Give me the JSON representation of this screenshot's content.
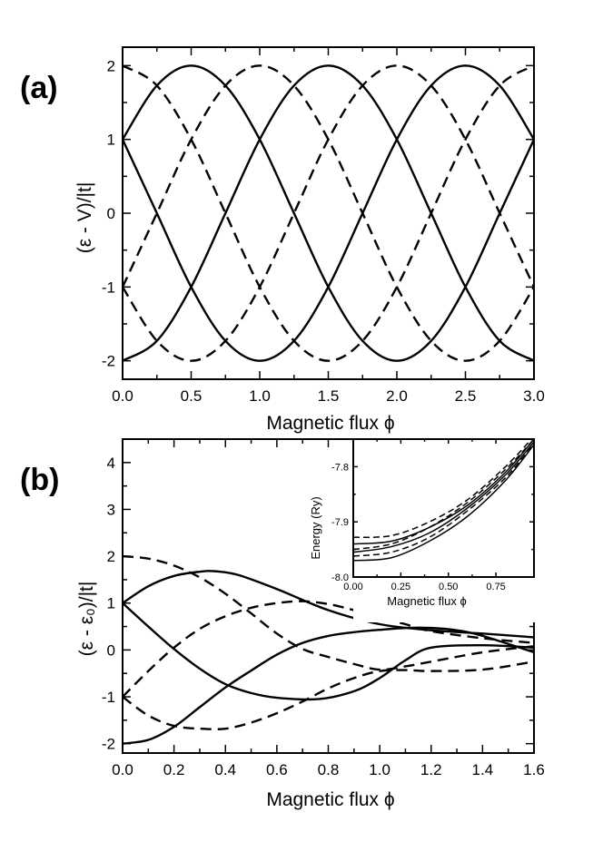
{
  "chart_data": [
    {
      "id": "a",
      "type": "line",
      "panel_label": "(a)",
      "title": "",
      "xlabel": "Magnetic flux ϕ",
      "ylabel": "(ε - V)/|t|",
      "xlim": [
        0,
        3
      ],
      "ylim": [
        -2.25,
        2.25
      ],
      "xticks": [
        0.0,
        0.5,
        1.0,
        1.5,
        2.0,
        2.5,
        3.0
      ],
      "xtick_labels": [
        "0.0",
        "0.5",
        "1.0",
        "1.5",
        "2.0",
        "2.5",
        "3.0"
      ],
      "yticks": [
        -2,
        -1,
        0,
        1,
        2
      ],
      "ytick_labels": [
        "-2",
        "-1",
        "0",
        "1",
        "2"
      ],
      "grid": false,
      "series": [
        {
          "style": "solid",
          "x": [
            0,
            0.25,
            0.5,
            0.75,
            1.0,
            1.25,
            1.5,
            1.75,
            2.0,
            2.25,
            2.5,
            2.75,
            3.0
          ],
          "y": [
            1.0,
            1.73,
            2.0,
            1.73,
            1.0,
            0.0,
            -1.0,
            -1.73,
            -2.0,
            -1.73,
            -1.0,
            0.0,
            1.0
          ]
        },
        {
          "style": "solid",
          "x": [
            0,
            0.25,
            0.5,
            0.75,
            1.0,
            1.25,
            1.5,
            1.75,
            2.0,
            2.25,
            2.5,
            2.75,
            3.0
          ],
          "y": [
            1.0,
            0.0,
            -1.0,
            -1.73,
            -2.0,
            -1.73,
            -1.0,
            0.0,
            1.0,
            1.73,
            2.0,
            1.73,
            1.0
          ]
        },
        {
          "style": "solid",
          "x": [
            0,
            0.25,
            0.5,
            0.75,
            1.0,
            1.25,
            1.5,
            1.75,
            2.0,
            2.25,
            2.5,
            2.75,
            3.0
          ],
          "y": [
            -2.0,
            -1.73,
            -1.0,
            0.0,
            1.0,
            1.73,
            2.0,
            1.73,
            1.0,
            0.0,
            -1.0,
            -1.73,
            -2.0
          ]
        },
        {
          "style": "dashed",
          "x": [
            0,
            0.25,
            0.5,
            0.75,
            1.0,
            1.25,
            1.5,
            1.75,
            2.0,
            2.25,
            2.5,
            2.75,
            3.0
          ],
          "y": [
            2.0,
            1.73,
            1.0,
            0.0,
            -1.0,
            -1.73,
            -2.0,
            -1.73,
            -1.0,
            0.0,
            1.0,
            1.73,
            2.0
          ]
        },
        {
          "style": "dashed",
          "x": [
            0,
            0.25,
            0.5,
            0.75,
            1.0,
            1.25,
            1.5,
            1.75,
            2.0,
            2.25,
            2.5,
            2.75,
            3.0
          ],
          "y": [
            -1.0,
            0.0,
            1.0,
            1.73,
            2.0,
            1.73,
            1.0,
            0.0,
            -1.0,
            -1.73,
            -2.0,
            -1.73,
            -1.0
          ]
        },
        {
          "style": "dashed",
          "x": [
            0,
            0.25,
            0.5,
            0.75,
            1.0,
            1.25,
            1.5,
            1.75,
            2.0,
            2.25,
            2.5,
            2.75,
            3.0
          ],
          "y": [
            -1.0,
            -1.73,
            -2.0,
            -1.73,
            -1.0,
            0.0,
            1.0,
            1.73,
            2.0,
            1.73,
            1.0,
            0.0,
            -1.0
          ]
        }
      ]
    },
    {
      "id": "b",
      "type": "line",
      "panel_label": "(b)",
      "title": "",
      "xlabel": "Magnetic flux ϕ",
      "ylabel": "(ε - ε₀)/|t|",
      "xlim": [
        0,
        1.6
      ],
      "ylim": [
        -2.2,
        4.5
      ],
      "xticks": [
        0.0,
        0.2,
        0.4,
        0.6,
        0.8,
        1.0,
        1.2,
        1.4,
        1.6
      ],
      "xtick_labels": [
        "0.0",
        "0.2",
        "0.4",
        "0.6",
        "0.8",
        "1.0",
        "1.2",
        "1.4",
        "1.6"
      ],
      "yticks": [
        -2,
        -1,
        0,
        1,
        2,
        3,
        4
      ],
      "ytick_labels": [
        "-2",
        "-1",
        "0",
        "1",
        "2",
        "3",
        "4"
      ],
      "grid": false,
      "series": [
        {
          "style": "solid",
          "x": [
            0,
            0.1,
            0.2,
            0.3,
            0.36,
            0.45,
            0.6,
            0.8,
            1.0,
            1.2,
            1.4,
            1.6
          ],
          "y": [
            1.0,
            1.36,
            1.58,
            1.67,
            1.68,
            1.6,
            1.3,
            0.85,
            0.55,
            0.42,
            0.35,
            0.27
          ]
        },
        {
          "style": "solid",
          "x": [
            0,
            0.1,
            0.2,
            0.3,
            0.4,
            0.5,
            0.6,
            0.76,
            0.9,
            1.0,
            1.1,
            1.2,
            1.4,
            1.6
          ],
          "y": [
            1.0,
            0.5,
            0.02,
            -0.4,
            -0.73,
            -0.92,
            -1.02,
            -1.05,
            -0.88,
            -0.6,
            -0.22,
            0.05,
            0.1,
            0.05
          ]
        },
        {
          "style": "solid",
          "x": [
            0,
            0.1,
            0.2,
            0.3,
            0.4,
            0.5,
            0.6,
            0.7,
            0.8,
            0.9,
            1.0,
            1.1,
            1.2,
            1.3,
            1.4,
            1.6
          ],
          "y": [
            -2.0,
            -1.92,
            -1.64,
            -1.22,
            -0.8,
            -0.44,
            -0.1,
            0.15,
            0.3,
            0.38,
            0.43,
            0.47,
            0.47,
            0.42,
            0.3,
            -0.05
          ]
        },
        {
          "style": "dashed",
          "x": [
            0,
            0.1,
            0.2,
            0.3,
            0.4,
            0.5,
            0.6,
            0.7,
            0.8,
            0.9,
            1.0,
            1.1,
            1.2,
            1.4,
            1.6
          ],
          "y": [
            2.0,
            1.95,
            1.8,
            1.55,
            1.2,
            0.78,
            0.35,
            0.02,
            -0.15,
            -0.3,
            -0.42,
            -0.35,
            -0.25,
            -0.05,
            0.08
          ]
        },
        {
          "style": "dashed",
          "x": [
            0,
            0.1,
            0.2,
            0.3,
            0.4,
            0.5,
            0.6,
            0.7,
            0.8,
            0.9,
            1.0,
            1.1,
            1.2,
            1.4,
            1.6
          ],
          "y": [
            -1.0,
            -0.45,
            0.05,
            0.45,
            0.72,
            0.9,
            1.0,
            1.04,
            0.98,
            0.85,
            0.7,
            0.55,
            0.4,
            0.25,
            0.15
          ]
        },
        {
          "style": "dashed",
          "x": [
            0,
            0.1,
            0.2,
            0.3,
            0.4,
            0.5,
            0.6,
            0.7,
            0.8,
            0.9,
            1.0,
            1.1,
            1.2,
            1.4,
            1.6
          ],
          "y": [
            -1.0,
            -1.4,
            -1.62,
            -1.68,
            -1.68,
            -1.55,
            -1.35,
            -1.1,
            -0.82,
            -0.6,
            -0.45,
            -0.43,
            -0.45,
            -0.42,
            -0.25
          ]
        }
      ]
    },
    {
      "id": "b-inset",
      "type": "line",
      "title": "",
      "xlabel": "Magnetic flux ϕ",
      "ylabel": "Energy (Ry)",
      "xlim": [
        0,
        0.95
      ],
      "ylim": [
        -8.0,
        -7.75
      ],
      "xticks": [
        0.0,
        0.25,
        0.5,
        0.75
      ],
      "xtick_labels": [
        "0.00",
        "0.25",
        "0.50",
        "0.75"
      ],
      "yticks": [
        -8.0,
        -7.9,
        -7.8
      ],
      "ytick_labels": [
        "-8.0",
        "-7.9",
        "-7.8"
      ],
      "grid": false,
      "series": [
        {
          "style": "solid",
          "x": [
            0,
            0.2,
            0.4,
            0.6,
            0.8,
            0.95
          ],
          "y": [
            -7.94,
            -7.935,
            -7.91,
            -7.87,
            -7.81,
            -7.75
          ]
        },
        {
          "style": "solid",
          "x": [
            0,
            0.2,
            0.4,
            0.6,
            0.8,
            0.95
          ],
          "y": [
            -7.955,
            -7.945,
            -7.92,
            -7.875,
            -7.815,
            -7.755
          ]
        },
        {
          "style": "solid",
          "x": [
            0,
            0.2,
            0.4,
            0.6,
            0.8,
            0.95
          ],
          "y": [
            -7.97,
            -7.965,
            -7.935,
            -7.89,
            -7.825,
            -7.76
          ]
        },
        {
          "style": "dashed",
          "x": [
            0,
            0.2,
            0.4,
            0.6,
            0.8,
            0.95
          ],
          "y": [
            -7.928,
            -7.925,
            -7.9,
            -7.86,
            -7.8,
            -7.745
          ]
        },
        {
          "style": "dashed",
          "x": [
            0,
            0.2,
            0.4,
            0.6,
            0.8,
            0.95
          ],
          "y": [
            -7.95,
            -7.94,
            -7.91,
            -7.865,
            -7.805,
            -7.75
          ]
        },
        {
          "style": "dashed",
          "x": [
            0,
            0.2,
            0.4,
            0.6,
            0.8,
            0.95
          ],
          "y": [
            -7.962,
            -7.955,
            -7.928,
            -7.88,
            -7.82,
            -7.758
          ]
        }
      ]
    }
  ]
}
